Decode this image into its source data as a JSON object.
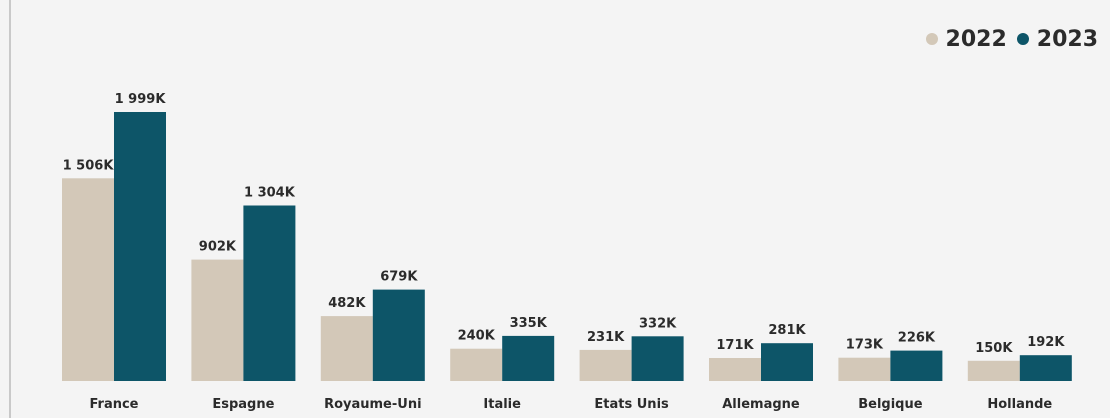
{
  "chart_data": {
    "type": "bar",
    "title": "",
    "xlabel": "",
    "ylabel": "",
    "categories": [
      "France",
      "Espagne",
      "Royaume-Uni",
      "Italie",
      "Etats Unis",
      "Allemagne",
      "Belgique",
      "Hollande"
    ],
    "series": [
      {
        "name": "2022",
        "color": "#d3c8b8",
        "values": [
          1506,
          902,
          482,
          240,
          231,
          171,
          173,
          150
        ],
        "labels": [
          "1 506K",
          "902K",
          "482K",
          "240K",
          "231K",
          "171K",
          "173K",
          "150K"
        ]
      },
      {
        "name": "2023",
        "color": "#0d5568",
        "values": [
          1999,
          1304,
          679,
          335,
          332,
          281,
          226,
          192
        ],
        "labels": [
          "1 999K",
          "1 304K",
          "679K",
          "335K",
          "332K",
          "281K",
          "226K",
          "192K"
        ]
      }
    ],
    "ylim": [
      0,
      2200
    ],
    "grid": false,
    "legend_position": "top-right",
    "unit": "K"
  }
}
